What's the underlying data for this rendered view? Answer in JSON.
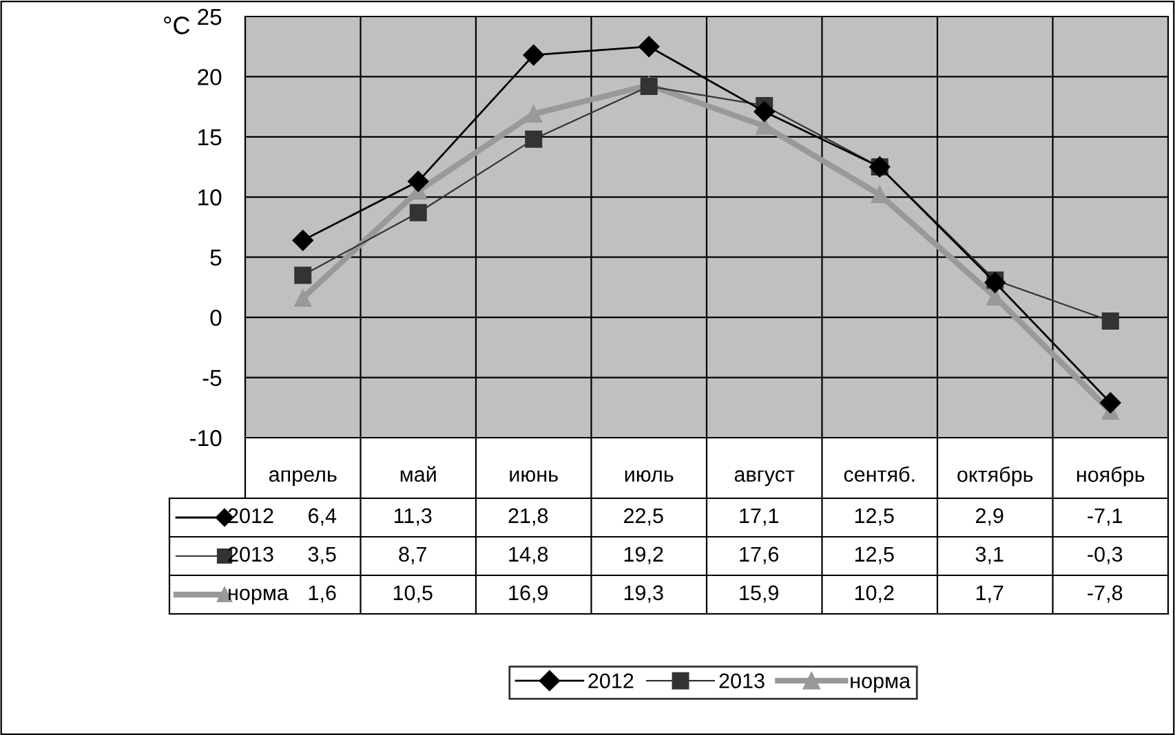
{
  "chart_data": {
    "type": "line",
    "ylabel": "°C",
    "categories": [
      "апрель",
      "май",
      "июнь",
      "июль",
      "август",
      "сентяб.",
      "октябрь",
      "ноябрь"
    ],
    "series": [
      {
        "name": "2012",
        "color": "#000000",
        "marker": "diamond",
        "values": [
          6.4,
          11.3,
          21.8,
          22.5,
          17.1,
          12.5,
          2.9,
          -7.1
        ],
        "value_labels": [
          "6,4",
          "11,3",
          "21,8",
          "22,5",
          "17,1",
          "12,5",
          "2,9",
          "-7,1"
        ]
      },
      {
        "name": "2013",
        "color": "#333333",
        "marker": "square",
        "values": [
          3.5,
          8.7,
          14.8,
          19.2,
          17.6,
          12.5,
          3.1,
          -0.3
        ],
        "value_labels": [
          "3,5",
          "8,7",
          "14,8",
          "19,2",
          "17,6",
          "12,5",
          "3,1",
          "-0,3"
        ]
      },
      {
        "name": "норма",
        "color": "#999999",
        "marker": "triangle",
        "values": [
          1.6,
          10.5,
          16.9,
          19.3,
          15.9,
          10.2,
          1.7,
          -7.8
        ],
        "value_labels": [
          "1,6",
          "10,5",
          "16,9",
          "19,3",
          "15,9",
          "10,2",
          "1,7",
          "-7,8"
        ]
      }
    ],
    "ylim": [
      -10,
      25
    ],
    "yticks": [
      -10,
      -5,
      0,
      5,
      10,
      15,
      20,
      25
    ],
    "grid": true,
    "legend": "bottom"
  }
}
